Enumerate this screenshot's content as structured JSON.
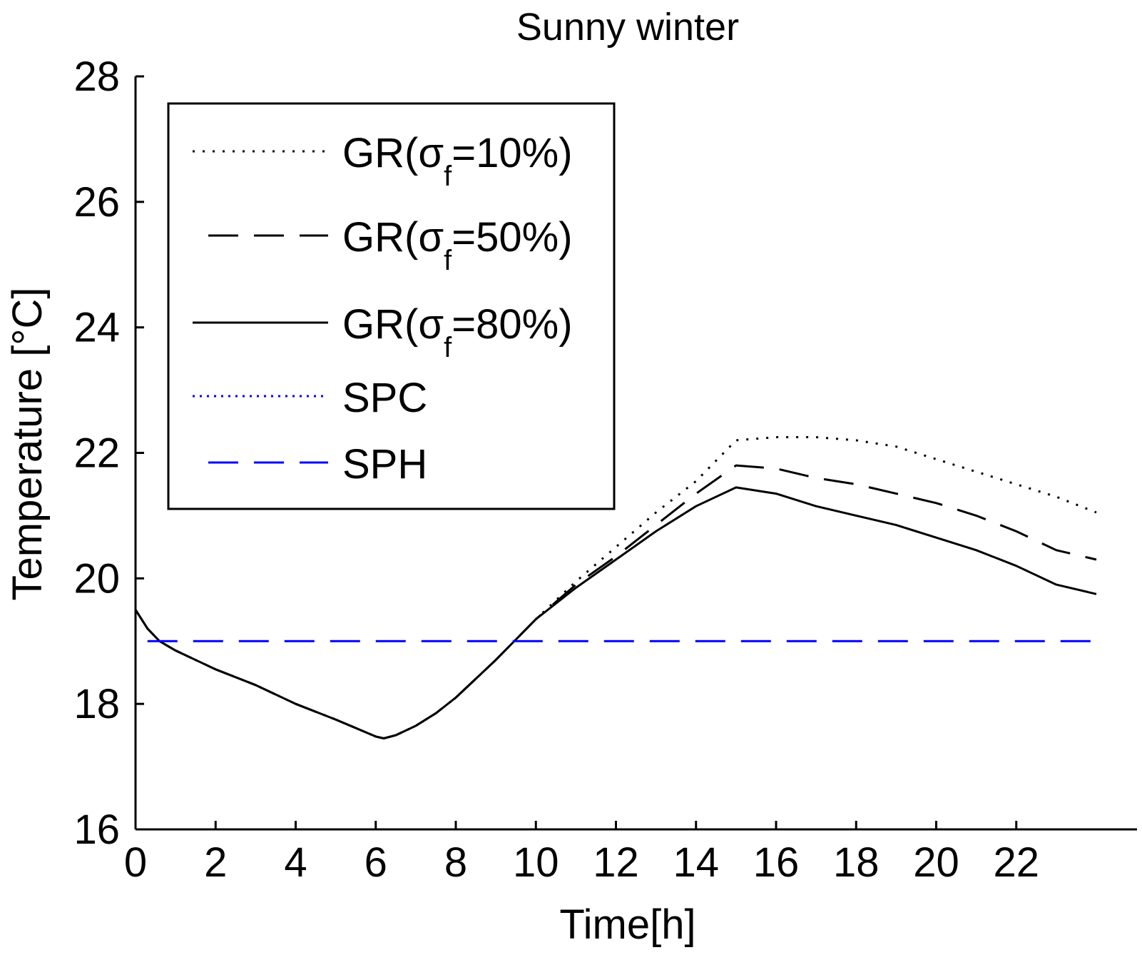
{
  "chart_data": {
    "type": "line",
    "title": "Sunny winter",
    "xlabel": "Time[h]",
    "ylabel": "Temperature [°C]",
    "xlim": [
      0,
      25
    ],
    "ylim": [
      16,
      28
    ],
    "xticks": [
      0,
      2,
      4,
      6,
      8,
      10,
      12,
      14,
      16,
      18,
      20,
      22
    ],
    "yticks": [
      16,
      18,
      20,
      22,
      24,
      26,
      28
    ],
    "legend_position": "top-left",
    "series": [
      {
        "name": "GR(σf=10%)",
        "label_main": "GR(σ",
        "label_sub": "f",
        "label_end": "=10%)",
        "color": "#000000",
        "style": "dotted",
        "x": [
          0,
          0.3,
          0.6,
          1,
          2,
          3,
          4,
          5,
          6,
          6.2,
          6.5,
          7,
          7.5,
          8,
          9,
          10,
          11,
          12,
          13,
          14,
          15,
          16,
          17,
          18,
          19,
          20,
          21,
          22,
          23,
          24
        ],
        "y": [
          19.5,
          19.2,
          19.0,
          18.85,
          18.55,
          18.3,
          18.0,
          17.75,
          17.48,
          17.45,
          17.5,
          17.65,
          17.85,
          18.1,
          18.7,
          19.35,
          19.95,
          20.5,
          21.05,
          21.55,
          22.2,
          22.25,
          22.25,
          22.2,
          22.1,
          21.9,
          21.7,
          21.5,
          21.3,
          21.05
        ]
      },
      {
        "name": "GR(σf=50%)",
        "label_main": "GR(σ",
        "label_sub": "f",
        "label_end": "=50%)",
        "color": "#000000",
        "style": "dashed",
        "x": [
          0,
          0.3,
          0.6,
          1,
          2,
          3,
          4,
          5,
          6,
          6.2,
          6.5,
          7,
          7.5,
          8,
          9,
          10,
          11,
          12,
          13,
          14,
          15,
          16,
          17,
          18,
          19,
          20,
          21,
          22,
          23,
          24
        ],
        "y": [
          19.5,
          19.2,
          19.0,
          18.85,
          18.55,
          18.3,
          18.0,
          17.75,
          17.48,
          17.45,
          17.5,
          17.65,
          17.85,
          18.1,
          18.7,
          19.35,
          19.9,
          20.35,
          20.85,
          21.35,
          21.8,
          21.75,
          21.6,
          21.5,
          21.35,
          21.2,
          21.0,
          20.75,
          20.45,
          20.3
        ]
      },
      {
        "name": "GR(σf=80%)",
        "label_main": "GR(σ",
        "label_sub": "f",
        "label_end": "=80%)",
        "color": "#000000",
        "style": "solid",
        "x": [
          0,
          0.3,
          0.6,
          1,
          2,
          3,
          4,
          5,
          6,
          6.2,
          6.5,
          7,
          7.5,
          8,
          9,
          10,
          11,
          12,
          13,
          14,
          15,
          16,
          17,
          18,
          19,
          20,
          21,
          22,
          23,
          24
        ],
        "y": [
          19.5,
          19.2,
          19.0,
          18.85,
          18.55,
          18.3,
          18.0,
          17.75,
          17.48,
          17.45,
          17.5,
          17.65,
          17.85,
          18.1,
          18.7,
          19.35,
          19.85,
          20.3,
          20.75,
          21.15,
          21.45,
          21.35,
          21.15,
          21.0,
          20.85,
          20.65,
          20.45,
          20.2,
          19.9,
          19.75
        ]
      },
      {
        "name": "SPC",
        "label_main": "SPC",
        "label_sub": "",
        "label_end": "",
        "color": "#0000ff",
        "style": "dotted",
        "x": [],
        "y": []
      },
      {
        "name": "SPH",
        "label_main": "SPH",
        "label_sub": "",
        "label_end": "",
        "color": "#0000ff",
        "style": "dashed",
        "x": [
          0.3,
          24
        ],
        "y": [
          19,
          19
        ]
      }
    ]
  }
}
